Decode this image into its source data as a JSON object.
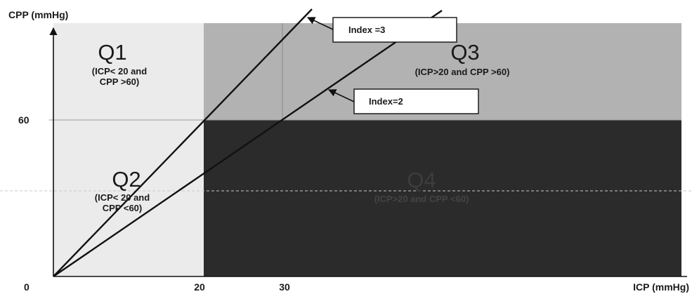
{
  "y_axis": {
    "label": "CPP (mmHg)",
    "tick_60": "60",
    "origin": "0"
  },
  "x_axis": {
    "label": "ICP (mmHg)",
    "tick_20": "20",
    "tick_30": "30"
  },
  "quadrants": {
    "q1": {
      "name": "Q1",
      "line1": "(ICP< 20 and",
      "line2": "CPP >60)"
    },
    "q2": {
      "name": "Q2",
      "line1": "(ICP< 20 and",
      "line2": "CPP <60)"
    },
    "q3": {
      "name": "Q3",
      "line1": "(ICP>20 and CPP >60)"
    },
    "q4": {
      "name": "Q4",
      "line1": "(ICP>20 and CPP <60)"
    }
  },
  "callouts": {
    "index3": "Index =3",
    "index2": "Index=2"
  },
  "colors": {
    "q1_q2_fill": "#ebebeb",
    "q3_fill": "#b2b2b2",
    "q4_fill": "#2b2b2b",
    "lines": "#111111"
  }
}
